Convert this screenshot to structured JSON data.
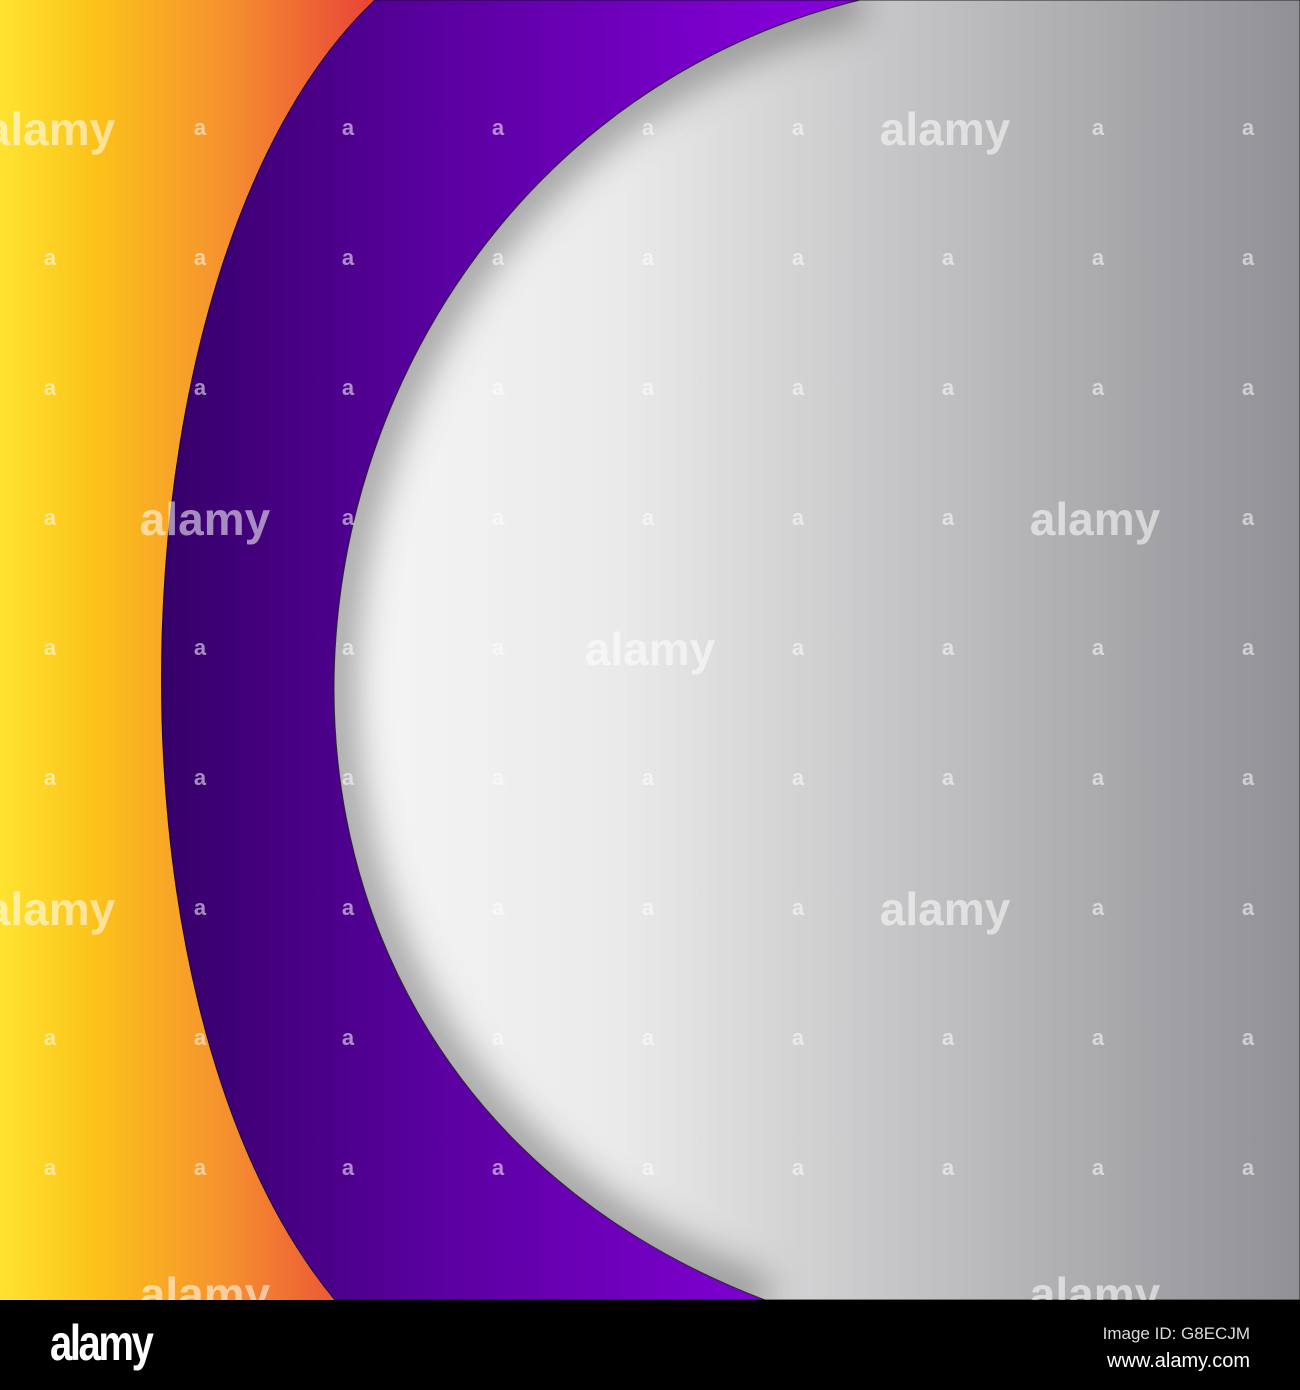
{
  "watermark": {
    "word": "alamy",
    "mark": "a"
  },
  "footer": {
    "logo": "alamy",
    "image_id": "Image ID: G8ECJM",
    "site": "www.alamy.com"
  },
  "colors": {
    "yellow": "#ffe330",
    "orange": "#f5a030",
    "red": "#e84038",
    "purple_dark": "#350068",
    "purple_bright": "#8a00e0",
    "gray_light": "#f4f4f4",
    "gray_dark": "#909095"
  }
}
